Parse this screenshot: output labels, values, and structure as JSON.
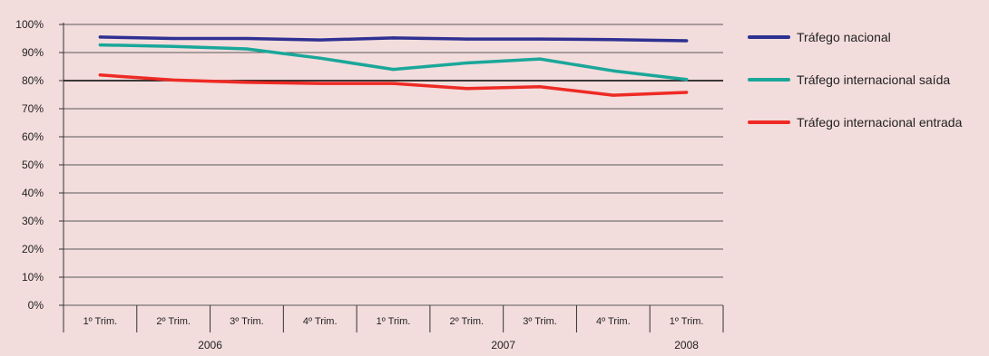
{
  "colors": {
    "background": "#f3dcdc",
    "Tráfego nacional": "#2e3192",
    "Tráfego internacional saída": "#1aa79a",
    "Tráfego internacional entrada": "#ee2a24"
  },
  "chart_data": {
    "type": "line",
    "title": "",
    "xlabel": "",
    "ylabel": "",
    "ylim": [
      0,
      100
    ],
    "yticks": [
      "0%",
      "10%",
      "20%",
      "30%",
      "40%",
      "50%",
      "60%",
      "70%",
      "80%",
      "90%",
      "100%"
    ],
    "grid": "horizontal",
    "legend_position": "right",
    "categories": [
      "1º Trim.",
      "2º Trim.",
      "3º Trim.",
      "4º Trim.",
      "1º Trim.",
      "2º Trim.",
      "3º Trim.",
      "4º Trim.",
      "1º Trim."
    ],
    "year_groups": [
      {
        "label": "2006",
        "start": 0,
        "end": 3
      },
      {
        "label": "2007",
        "start": 4,
        "end": 7
      },
      {
        "label": "2008",
        "start": 8,
        "end": 8
      }
    ],
    "series": [
      {
        "name": "Tráfego nacional",
        "values": [
          95.5,
          95.0,
          95.0,
          94.5,
          95.2,
          94.8,
          94.8,
          94.6,
          94.2
        ]
      },
      {
        "name": "Tráfego internacional saída",
        "values": [
          92.7,
          92.2,
          91.3,
          88.0,
          84.0,
          86.3,
          87.7,
          83.5,
          80.4
        ]
      },
      {
        "name": "Tráfego internacional entrada",
        "values": [
          82.0,
          80.2,
          79.4,
          79.0,
          79.0,
          77.2,
          77.8,
          74.8,
          75.8
        ]
      }
    ]
  }
}
